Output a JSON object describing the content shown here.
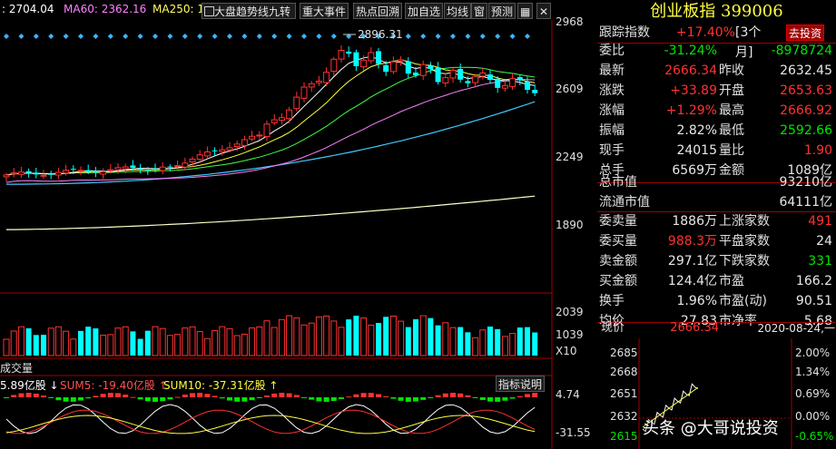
{
  "ma_bar": {
    "ma_cut": ": 2704.04",
    "ma60": "MA60: 2362.16",
    "ma250": "MA250: 1!"
  },
  "toolbar": {
    "trend_label": "大盘趋势线",
    "nine_label": "九转",
    "events_label": "重大事件",
    "hot_label": "热点回溯",
    "add_label": "加自选",
    "avg_label": "均线",
    "window_label": "窗",
    "forecast_label": "预测",
    "close_label": "✕"
  },
  "price_axis": [
    "2968",
    "2609",
    "2249",
    "1890"
  ],
  "volume_axis": [
    "2039",
    "1039",
    "X10"
  ],
  "peak_label": "2896.31",
  "volume_title": "成交量",
  "indicator": {
    "v1": "5.89亿股 ↓",
    "sum5": "SUM5: -19.40亿股 ↑",
    "sum10": "SUM10: -37.31亿股 ↑",
    "explain_label": "指标说明",
    "axis": [
      "4.74",
      "-31.55"
    ]
  },
  "index": {
    "name": "创业板指",
    "code": "399006",
    "track_label": "跟踪指数",
    "track_value": "+17.40%",
    "period": "[3个月]",
    "invest_label": "去投资"
  },
  "quote_rows": [
    {
      "l1": "委比",
      "v1": "-31.24%",
      "c1": "green",
      "l2": "",
      "v2": "-8978724",
      "c2": "green"
    },
    {
      "l1": "最新",
      "v1": "2666.34",
      "c1": "red",
      "l2": "昨收",
      "v2": "2632.45",
      "c2": "white"
    },
    {
      "l1": "涨跌",
      "v1": "+33.89",
      "c1": "red",
      "l2": "开盘",
      "v2": "2653.63",
      "c2": "red"
    },
    {
      "l1": "涨幅",
      "v1": "+1.29%",
      "c1": "red",
      "l2": "最高",
      "v2": "2666.92",
      "c2": "red"
    },
    {
      "l1": "振幅",
      "v1": "2.82%",
      "c1": "white",
      "l2": "最低",
      "v2": "2592.66",
      "c2": "green"
    },
    {
      "l1": "现手",
      "v1": "24015",
      "c1": "white",
      "l2": "量比",
      "v2": "1.90",
      "c2": "red"
    },
    {
      "l1": "总手",
      "v1": "6569万",
      "c1": "white",
      "l2": "金额",
      "v2": "1089亿",
      "c2": "white"
    }
  ],
  "market_cap_rows": [
    {
      "l1": "总市值",
      "v1": "93210亿"
    },
    {
      "l1": "流通市值",
      "v1": "64111亿"
    }
  ],
  "stats_rows": [
    {
      "l1": "委卖量",
      "v1": "1886万",
      "c1": "white",
      "l2": "上涨家数",
      "v2": "491",
      "c2": "red"
    },
    {
      "l1": "委买量",
      "v1": "988.3万",
      "c1": "red",
      "l2": "平盘家数",
      "v2": "24",
      "c2": "white"
    },
    {
      "l1": "卖金额",
      "v1": "297.1亿",
      "c1": "white",
      "l2": "下跌家数",
      "v2": "331",
      "c2": "green"
    },
    {
      "l1": "买金额",
      "v1": "124.4亿",
      "c1": "white",
      "l2": "市盈",
      "v2": "166.2",
      "c2": "white"
    },
    {
      "l1": "换手",
      "v1": "1.96%",
      "c1": "white",
      "l2": "市盈(动)",
      "v2": "90.51",
      "c2": "white"
    },
    {
      "l1": "均价",
      "v1": "27.83",
      "c1": "white",
      "l2": "市净率",
      "v2": "5.68",
      "c2": "white"
    }
  ],
  "current": {
    "label": "现价",
    "value": "2666.34",
    "date": "2020-08-24,一"
  },
  "mini_chart": {
    "left_axis": [
      "2685",
      "2668",
      "2651",
      "2632",
      "2615"
    ],
    "right_axis": [
      "2.00%",
      "1.34%",
      "0.69%",
      "0.00%",
      "-0.65%"
    ]
  },
  "watermark": "头条 @大哥说投资",
  "colors": {
    "up": "#ff3232",
    "down": "#00ffff",
    "down_text": "#00e600",
    "bg": "#000000"
  }
}
